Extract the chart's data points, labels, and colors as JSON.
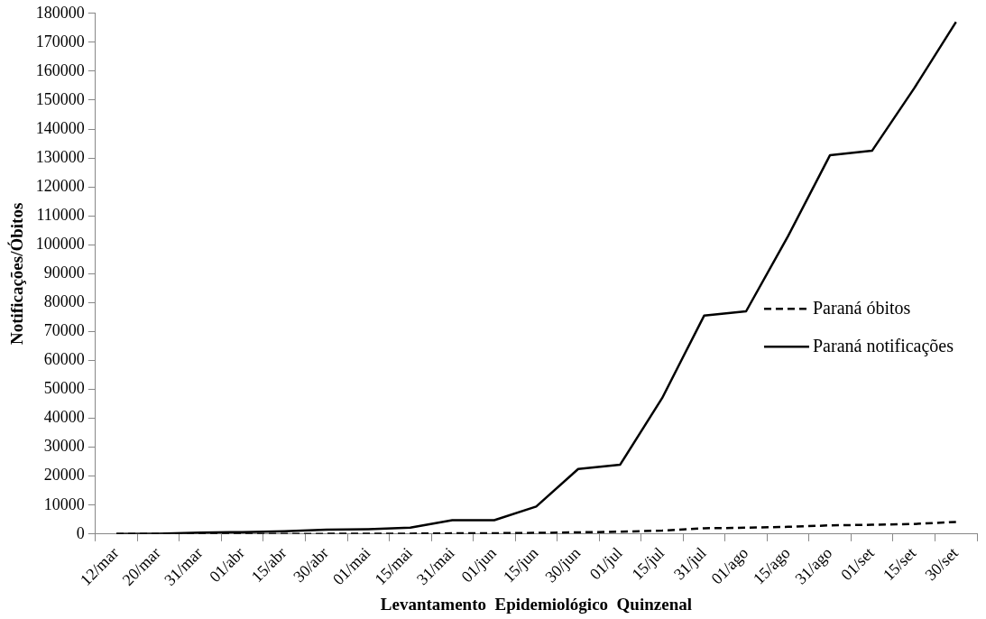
{
  "chart_data": {
    "type": "line",
    "xlabel": "Levantamento  Epidemiológico  Quinzenal",
    "ylabel": "Notificações/Óbitos",
    "categories": [
      "12/mar",
      "20/mar",
      "31/mar",
      "01/abr",
      "15/abr",
      "30/abr",
      "01/mai",
      "15/mai",
      "31/mai",
      "01/jun",
      "15/jun",
      "30/jun",
      "01/jul",
      "15/jul",
      "31/jul",
      "01/ago",
      "15/ago",
      "31/ago",
      "01/set",
      "15/set",
      "30/set"
    ],
    "series": [
      {
        "name": "Paraná óbitos",
        "color": "#000000",
        "line_style": "dashed",
        "values": [
          0,
          0,
          10,
          20,
          50,
          80,
          100,
          150,
          250,
          300,
          400,
          600,
          800,
          1200,
          2000,
          2200,
          2500,
          3000,
          3200,
          3500,
          4200
        ]
      },
      {
        "name": "Paraná notificações",
        "color": "#000000",
        "line_style": "solid",
        "values": [
          0,
          100,
          500,
          700,
          1000,
          1500,
          1700,
          2200,
          4800,
          4800,
          9500,
          22500,
          24000,
          47000,
          75500,
          77000,
          103000,
          131000,
          132500,
          154000,
          177000
        ]
      }
    ],
    "ylim": [
      0,
      180000
    ],
    "yticks": [
      0,
      10000,
      20000,
      30000,
      40000,
      50000,
      60000,
      70000,
      80000,
      90000,
      100000,
      110000,
      120000,
      130000,
      140000,
      150000,
      160000,
      170000,
      180000
    ],
    "grid": false,
    "legend": "right",
    "marker": "none"
  }
}
